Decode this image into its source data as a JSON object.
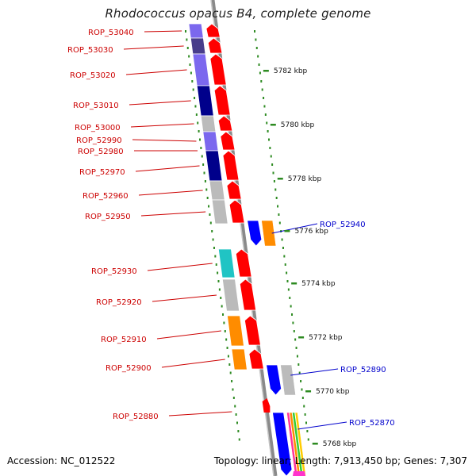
{
  "title": "Rhodococcus opacus B4, complete genome",
  "footer": {
    "accession": "Accession: NC_012522",
    "summary": "Topology: linear; Length: 7,913,450 bp; Genes: 7,307"
  },
  "colors": {
    "left_label": "#cc0000",
    "right_label": "#0000cc",
    "tick": "#2e8b22",
    "backbone": "#999999",
    "forward_gene": "#ff0000"
  },
  "scale": [
    {
      "label": "5782 kbp"
    },
    {
      "label": "5780 kbp"
    },
    {
      "label": "5778 kbp"
    },
    {
      "label": "5776 kbp"
    },
    {
      "label": "5774 kbp"
    },
    {
      "label": "5772 kbp"
    },
    {
      "label": "5770 kbp"
    },
    {
      "label": "5768 kbp"
    }
  ],
  "left_genes": [
    {
      "label": "ROP_53040",
      "color": "#7b68ee"
    },
    {
      "label": "ROP_53030",
      "color": "#483d8b"
    },
    {
      "label": "ROP_53020",
      "color": "#7b68ee"
    },
    {
      "label": "ROP_53010",
      "color": "#00008b"
    },
    {
      "label": "ROP_53000",
      "color": "#bbbbbb"
    },
    {
      "label": "ROP_52990",
      "color": "#7b68ee"
    },
    {
      "label": "ROP_52980",
      "color": "#7b68ee"
    },
    {
      "label": "ROP_52970",
      "color": "#00008b"
    },
    {
      "label": "ROP_52960",
      "color": "#bbbbbb"
    },
    {
      "label": "ROP_52950",
      "color": "#bbbbbb"
    },
    {
      "label": "ROP_52930",
      "color": "#20c4c4"
    },
    {
      "label": "ROP_52920",
      "color": "#bbbbbb"
    },
    {
      "label": "ROP_52910",
      "color": "#ff8c00"
    },
    {
      "label": "ROP_52900",
      "color": "#ff8c00"
    },
    {
      "label": "ROP_52880",
      "color": "#ff0000"
    }
  ],
  "right_genes": [
    {
      "label": "ROP_52940"
    },
    {
      "label": "ROP_52890"
    },
    {
      "label": "ROP_52870"
    }
  ]
}
